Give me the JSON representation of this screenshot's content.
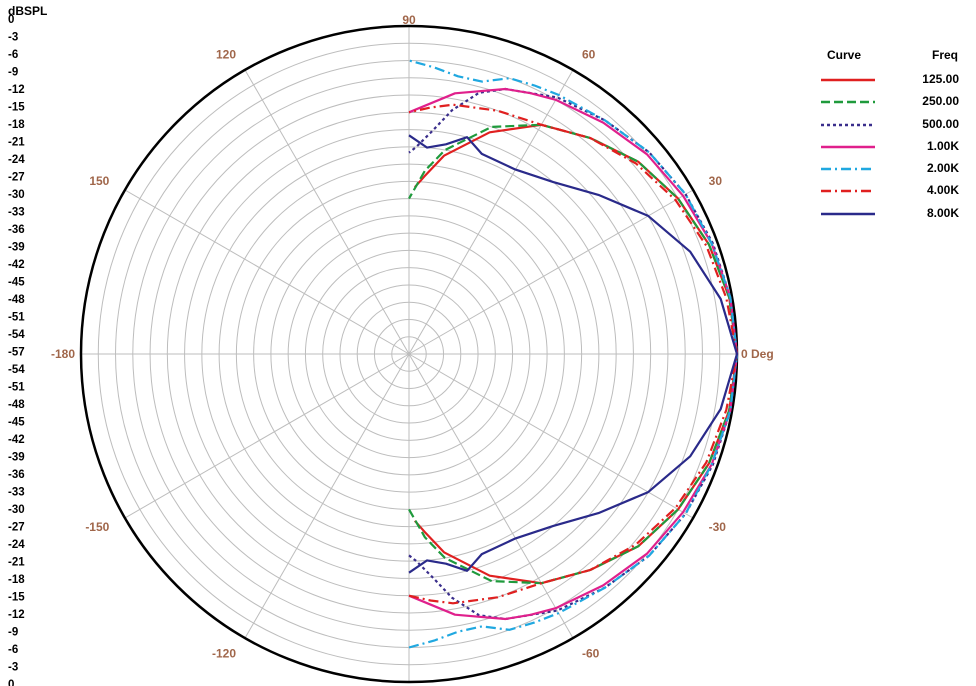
{
  "chart_data": {
    "type": "polar",
    "unit_label": "dBSPL",
    "radial_range": [
      -57,
      0
    ],
    "radial_ticks": [
      0,
      -3,
      -6,
      -9,
      -12,
      -15,
      -18,
      -21,
      -24,
      -27,
      -30,
      -33,
      -36,
      -39,
      -42,
      -45,
      -48,
      -51,
      -54,
      -57,
      -54,
      -51,
      -48,
      -45,
      -42,
      -39,
      -36,
      -33,
      -30,
      -27,
      -24,
      -21,
      -18,
      -15,
      -12,
      -9,
      -6,
      -3,
      0
    ],
    "angle_labels": [
      {
        "angle": 0,
        "text": "0 Deg"
      },
      {
        "angle": 30,
        "text": "30"
      },
      {
        "angle": 60,
        "text": "60"
      },
      {
        "angle": 90,
        "text": "90"
      },
      {
        "angle": 120,
        "text": "120"
      },
      {
        "angle": 150,
        "text": "150"
      },
      {
        "angle": 180,
        "text": "-180"
      },
      {
        "angle": -150,
        "text": "-150"
      },
      {
        "angle": -120,
        "text": "-120"
      },
      {
        "angle": -90,
        "text": ""
      },
      {
        "angle": -60,
        "text": "-60"
      },
      {
        "angle": -30,
        "text": "-30"
      }
    ],
    "legend": {
      "header_curve": "Curve",
      "header_freq": "Freq",
      "placement": "right"
    },
    "series": [
      {
        "name": "125.00",
        "color": "#e02020",
        "dash": "solid",
        "angles": [
          0,
          10,
          20,
          30,
          40,
          50,
          60,
          70,
          80,
          85,
          88
        ],
        "values": [
          0,
          -0.5,
          -1.5,
          -3,
          -5,
          -8,
          -11,
          -16,
          -22,
          -26,
          -28
        ]
      },
      {
        "name": "250.00",
        "color": "#1f9a3c",
        "dash": "dash",
        "angles": [
          0,
          10,
          20,
          30,
          40,
          50,
          60,
          70,
          80,
          85,
          90
        ],
        "values": [
          0,
          -0.5,
          -1.5,
          -3,
          -5,
          -8,
          -11,
          -15,
          -21,
          -25,
          -30
        ]
      },
      {
        "name": "500.00",
        "color": "#3a2e8c",
        "dash": "dot",
        "angles": [
          0,
          10,
          20,
          30,
          40,
          50,
          60,
          70,
          75,
          80,
          84,
          88,
          90
        ],
        "values": [
          0,
          -0.3,
          -0.8,
          -1.5,
          -2.5,
          -4,
          -5.5,
          -8,
          -10,
          -14,
          -18,
          -21,
          -22
        ]
      },
      {
        "name": "1.00K",
        "color": "#e0208c",
        "dash": "solid",
        "angles": [
          0,
          10,
          20,
          30,
          40,
          50,
          60,
          65,
          70,
          80,
          90
        ],
        "values": [
          0,
          -0.3,
          -1,
          -2,
          -3,
          -4.5,
          -6,
          -7,
          -8,
          -11,
          -15
        ]
      },
      {
        "name": "2.00K",
        "color": "#20a8e0",
        "dash": "dashdot",
        "angles": [
          0,
          10,
          20,
          30,
          40,
          50,
          60,
          65,
          70,
          75,
          80,
          85,
          90
        ],
        "values": [
          0,
          -0.3,
          -1,
          -1.5,
          -2.5,
          -4,
          -5,
          -5.5,
          -6,
          -8,
          -8,
          -7,
          -6
        ]
      },
      {
        "name": "4.00K",
        "color": "#e02020",
        "dash": "dashdot",
        "angles": [
          0,
          10,
          20,
          30,
          40,
          50,
          60,
          70,
          80,
          85,
          90
        ],
        "values": [
          0,
          -1,
          -2,
          -3.5,
          -5.5,
          -8,
          -11,
          -12,
          -13,
          -14,
          -15
        ]
      },
      {
        "name": "8.00K",
        "color": "#2a2a8a",
        "dash": "solid",
        "angles": [
          0,
          10,
          20,
          30,
          40,
          50,
          60,
          70,
          75,
          80,
          85,
          90
        ],
        "values": [
          0,
          -2,
          -5,
          -9,
          -14,
          -18,
          -20,
          -20,
          -18,
          -20,
          -21,
          -19
        ]
      }
    ]
  }
}
